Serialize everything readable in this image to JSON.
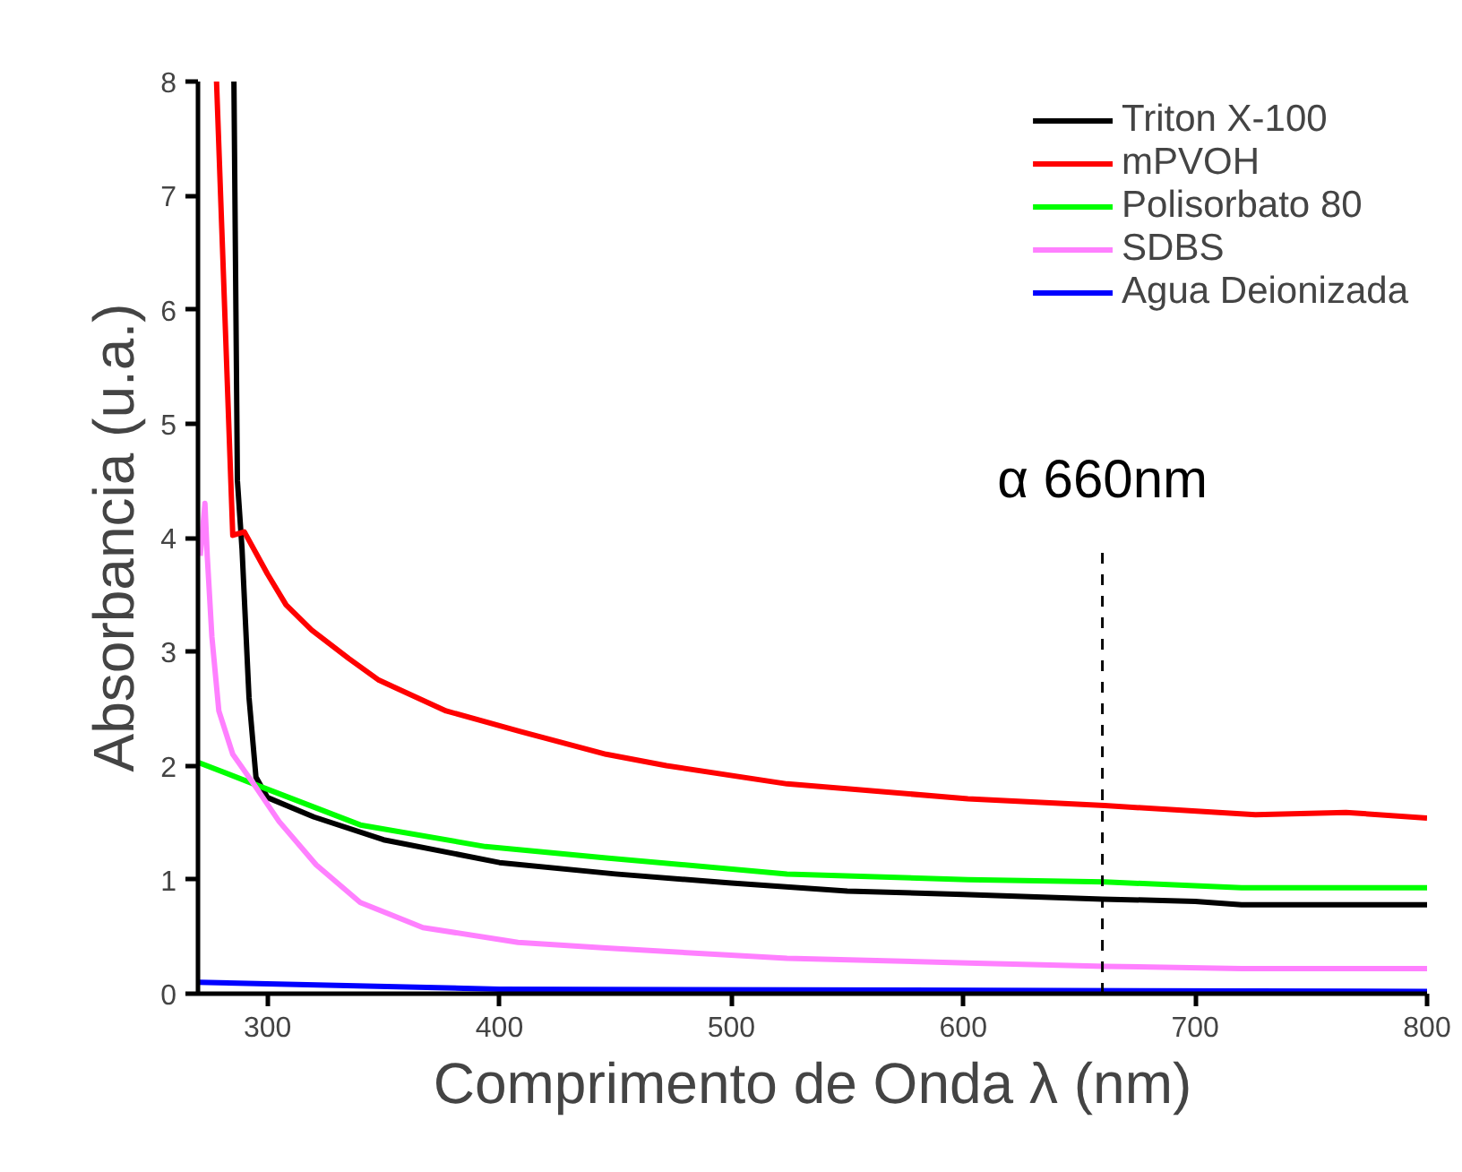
{
  "chart_data": {
    "type": "line",
    "xlabel": "Comprimento de Onda λ (nm)",
    "ylabel": "Absorbancia (u.a.)",
    "xlim": [
      270,
      800
    ],
    "ylim": [
      0,
      8
    ],
    "xticks": [
      300,
      400,
      500,
      600,
      700,
      800
    ],
    "yticks": [
      0,
      1,
      2,
      3,
      4,
      5,
      6,
      7,
      8
    ],
    "grid": false,
    "legend": "top right",
    "line_style": "solid",
    "marker": "none",
    "ref_lines": [
      {
        "axis": "x",
        "value": 660,
        "label": "α 660nm",
        "color": "#000000",
        "line_style": "dashed"
      }
    ],
    "series": [
      {
        "name": "Triton X-100",
        "color": "#000000",
        "x": [
          285.5,
          287,
          289,
          292,
          295,
          300,
          320,
          350,
          400,
          450,
          500,
          550,
          600,
          660,
          700,
          720,
          800
        ],
        "values": [
          8,
          4.5,
          3.9,
          2.6,
          1.9,
          1.72,
          1.55,
          1.35,
          1.15,
          1.05,
          0.97,
          0.9,
          0.87,
          0.83,
          0.81,
          0.78,
          0.78
        ]
      },
      {
        "name": "mPVOH",
        "color": "#ff0000",
        "x": [
          278,
          285,
          290,
          300,
          308,
          319,
          335,
          348,
          377,
          409,
          446,
          472,
          524,
          602,
          661,
          726,
          765,
          800
        ],
        "values": [
          8,
          4.02,
          4.05,
          3.68,
          3.41,
          3.19,
          2.94,
          2.75,
          2.48,
          2.3,
          2.1,
          2.0,
          1.84,
          1.71,
          1.65,
          1.57,
          1.59,
          1.54
        ]
      },
      {
        "name": "Polisorbato 80",
        "color": "#00ff00",
        "x": [
          270,
          294,
          340,
          394,
          446,
          524,
          602,
          661,
          720,
          800
        ],
        "values": [
          2.03,
          1.84,
          1.48,
          1.29,
          1.19,
          1.05,
          1.0,
          0.98,
          0.93,
          0.93
        ]
      },
      {
        "name": "SDBS",
        "color": "#ff80ff",
        "x": [
          271,
          273,
          274,
          276,
          279,
          285,
          294,
          305,
          321,
          340,
          367,
          408,
          446,
          524,
          602,
          661,
          720,
          800
        ],
        "values": [
          3.84,
          4.3,
          3.84,
          3.13,
          2.48,
          2.1,
          1.84,
          1.51,
          1.13,
          0.8,
          0.58,
          0.45,
          0.4,
          0.31,
          0.27,
          0.24,
          0.22,
          0.22
        ]
      },
      {
        "name": "Agua Deionizada",
        "color": "#0000ff",
        "x": [
          270,
          400,
          800
        ],
        "values": [
          0.1,
          0.04,
          0.02
        ]
      }
    ]
  }
}
